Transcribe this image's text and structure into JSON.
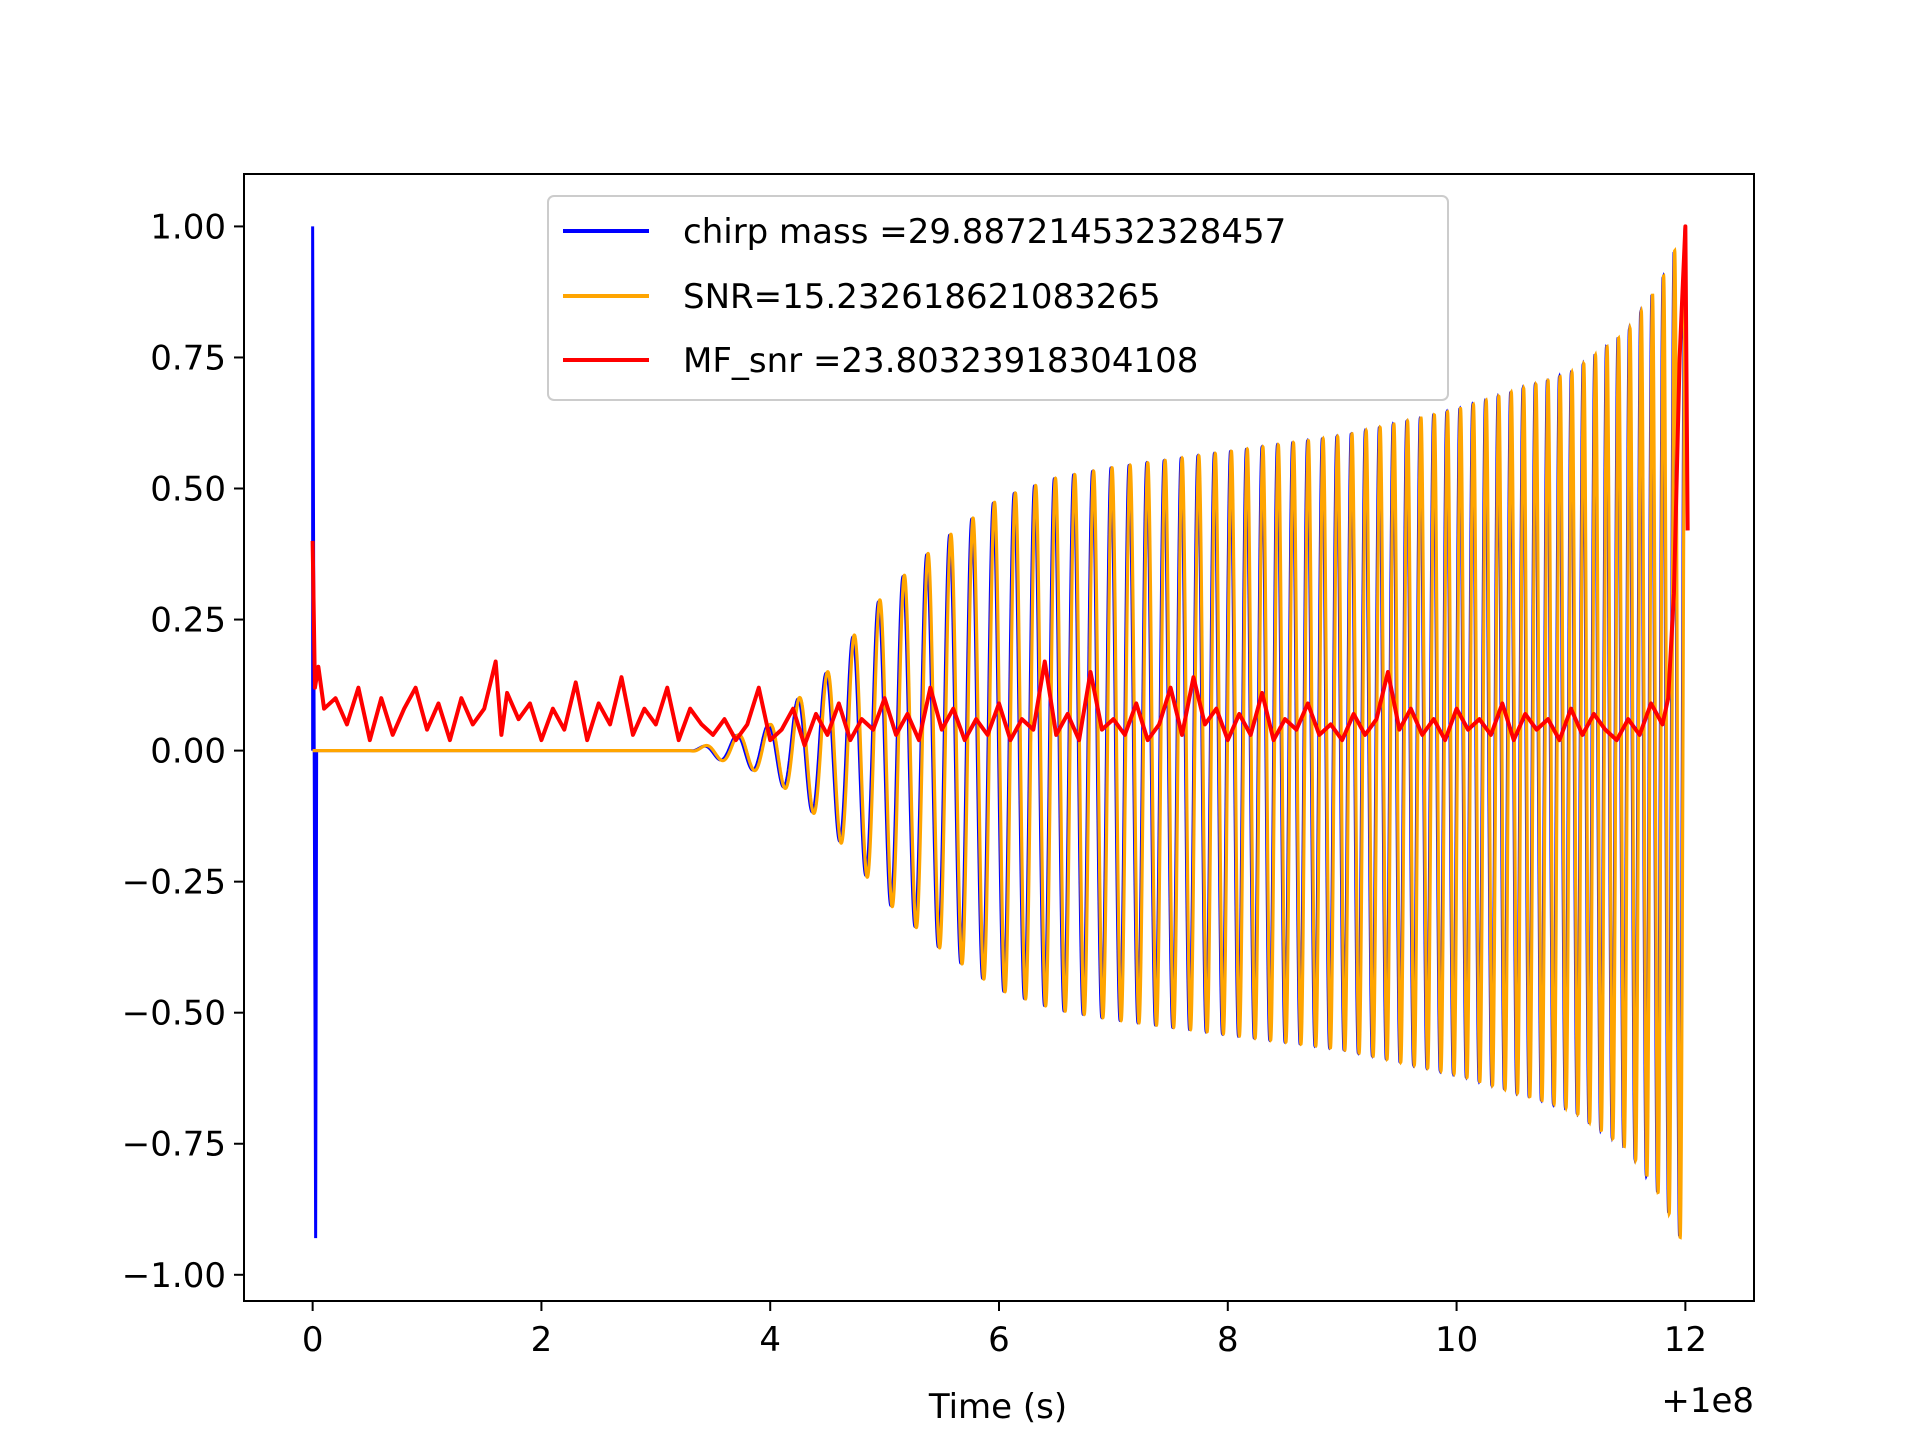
{
  "chart_data": {
    "type": "line",
    "xlabel": "Time (s)",
    "x_offset_label": "+1e8",
    "xlim": [
      -0.6,
      12.6
    ],
    "ylim": [
      -1.05,
      1.1
    ],
    "x_ticks": [
      0,
      2,
      4,
      6,
      8,
      10,
      12
    ],
    "x_tick_labels": [
      "0",
      "2",
      "4",
      "6",
      "8",
      "10",
      "12"
    ],
    "y_ticks": [
      1.0,
      0.75,
      0.5,
      0.25,
      0.0,
      -0.25,
      -0.5,
      -0.75,
      -1.0
    ],
    "y_tick_labels": [
      "1.00",
      "0.75",
      "0.50",
      "0.25",
      "0.00",
      "−0.25",
      "−0.50",
      "−0.75",
      "−1.00"
    ],
    "legend_position": "upper center",
    "grid": false,
    "series": [
      {
        "name": "chirp mass =29.887214532328457",
        "color": "#0000ff",
        "description": "chirp waveform; spike at t=0 then oscillation growing in amplitude to the end",
        "spike": {
          "t": 0.0,
          "max": 1.0,
          "min": -0.93
        },
        "start_t": 0.0,
        "end_t": 12.0,
        "envelope": [
          [
            0.0,
            0.0
          ],
          [
            3.3,
            0.0
          ],
          [
            4.0,
            0.05
          ],
          [
            4.5,
            0.15
          ],
          [
            5.0,
            0.3
          ],
          [
            5.5,
            0.4
          ],
          [
            6.0,
            0.48
          ],
          [
            6.5,
            0.52
          ],
          [
            7.0,
            0.54
          ],
          [
            8.0,
            0.57
          ],
          [
            9.0,
            0.6
          ],
          [
            10.0,
            0.65
          ],
          [
            11.0,
            0.72
          ],
          [
            11.5,
            0.8
          ],
          [
            11.8,
            0.9
          ],
          [
            12.0,
            1.0
          ]
        ],
        "end_min": -0.95
      },
      {
        "name": "SNR=15.232618621083265",
        "color": "#ffa500",
        "description": "same waveform as the chirp series, slightly offset",
        "start_t": 0.0,
        "end_t": 12.0,
        "envelope": [
          [
            0.0,
            0.0
          ],
          [
            3.3,
            0.0
          ],
          [
            4.0,
            0.05
          ],
          [
            4.5,
            0.15
          ],
          [
            5.0,
            0.3
          ],
          [
            5.5,
            0.4
          ],
          [
            6.0,
            0.48
          ],
          [
            6.5,
            0.52
          ],
          [
            7.0,
            0.54
          ],
          [
            8.0,
            0.57
          ],
          [
            9.0,
            0.6
          ],
          [
            10.0,
            0.65
          ],
          [
            11.0,
            0.72
          ],
          [
            11.5,
            0.8
          ],
          [
            11.8,
            0.9
          ],
          [
            12.0,
            1.0
          ]
        ],
        "end_min": -0.95
      },
      {
        "name": "MF_snr =23.80323918304108",
        "color": "#ff0000",
        "description": "matched filter output; noisy between 0 and 0.18, spike to 1.0 at the end",
        "x": [
          0.0,
          0.02,
          0.05,
          0.1,
          0.2,
          0.3,
          0.4,
          0.5,
          0.6,
          0.7,
          0.8,
          0.9,
          1.0,
          1.1,
          1.2,
          1.3,
          1.4,
          1.5,
          1.6,
          1.65,
          1.7,
          1.8,
          1.9,
          2.0,
          2.1,
          2.2,
          2.3,
          2.4,
          2.5,
          2.6,
          2.7,
          2.8,
          2.9,
          3.0,
          3.1,
          3.2,
          3.3,
          3.4,
          3.5,
          3.6,
          3.7,
          3.8,
          3.9,
          4.0,
          4.1,
          4.2,
          4.3,
          4.4,
          4.5,
          4.6,
          4.7,
          4.8,
          4.9,
          5.0,
          5.1,
          5.2,
          5.3,
          5.4,
          5.5,
          5.6,
          5.7,
          5.8,
          5.9,
          6.0,
          6.1,
          6.2,
          6.3,
          6.4,
          6.5,
          6.6,
          6.7,
          6.8,
          6.9,
          7.0,
          7.1,
          7.2,
          7.3,
          7.4,
          7.5,
          7.6,
          7.7,
          7.8,
          7.9,
          8.0,
          8.1,
          8.2,
          8.3,
          8.4,
          8.5,
          8.6,
          8.7,
          8.8,
          8.9,
          9.0,
          9.1,
          9.2,
          9.3,
          9.4,
          9.5,
          9.6,
          9.7,
          9.8,
          9.9,
          10.0,
          10.1,
          10.2,
          10.3,
          10.4,
          10.5,
          10.6,
          10.7,
          10.8,
          10.9,
          11.0,
          11.1,
          11.2,
          11.3,
          11.4,
          11.5,
          11.6,
          11.7,
          11.8,
          11.85,
          11.9,
          11.95,
          12.0,
          12.02
        ],
        "y": [
          0.4,
          0.12,
          0.16,
          0.08,
          0.1,
          0.05,
          0.12,
          0.02,
          0.1,
          0.03,
          0.08,
          0.12,
          0.04,
          0.09,
          0.02,
          0.1,
          0.05,
          0.08,
          0.17,
          0.03,
          0.11,
          0.06,
          0.09,
          0.02,
          0.08,
          0.04,
          0.13,
          0.02,
          0.09,
          0.05,
          0.14,
          0.03,
          0.08,
          0.05,
          0.12,
          0.02,
          0.08,
          0.05,
          0.03,
          0.06,
          0.02,
          0.05,
          0.12,
          0.02,
          0.04,
          0.08,
          0.01,
          0.07,
          0.03,
          0.09,
          0.02,
          0.06,
          0.04,
          0.1,
          0.03,
          0.07,
          0.02,
          0.12,
          0.04,
          0.08,
          0.02,
          0.06,
          0.03,
          0.09,
          0.02,
          0.06,
          0.04,
          0.17,
          0.03,
          0.07,
          0.02,
          0.15,
          0.04,
          0.06,
          0.03,
          0.09,
          0.02,
          0.05,
          0.12,
          0.03,
          0.14,
          0.05,
          0.08,
          0.02,
          0.07,
          0.03,
          0.11,
          0.02,
          0.06,
          0.04,
          0.09,
          0.03,
          0.05,
          0.02,
          0.07,
          0.03,
          0.06,
          0.15,
          0.04,
          0.08,
          0.03,
          0.06,
          0.02,
          0.08,
          0.04,
          0.06,
          0.03,
          0.09,
          0.02,
          0.07,
          0.04,
          0.06,
          0.02,
          0.08,
          0.03,
          0.07,
          0.04,
          0.02,
          0.06,
          0.03,
          0.09,
          0.05,
          0.1,
          0.3,
          0.75,
          1.0,
          0.42
        ]
      }
    ]
  }
}
